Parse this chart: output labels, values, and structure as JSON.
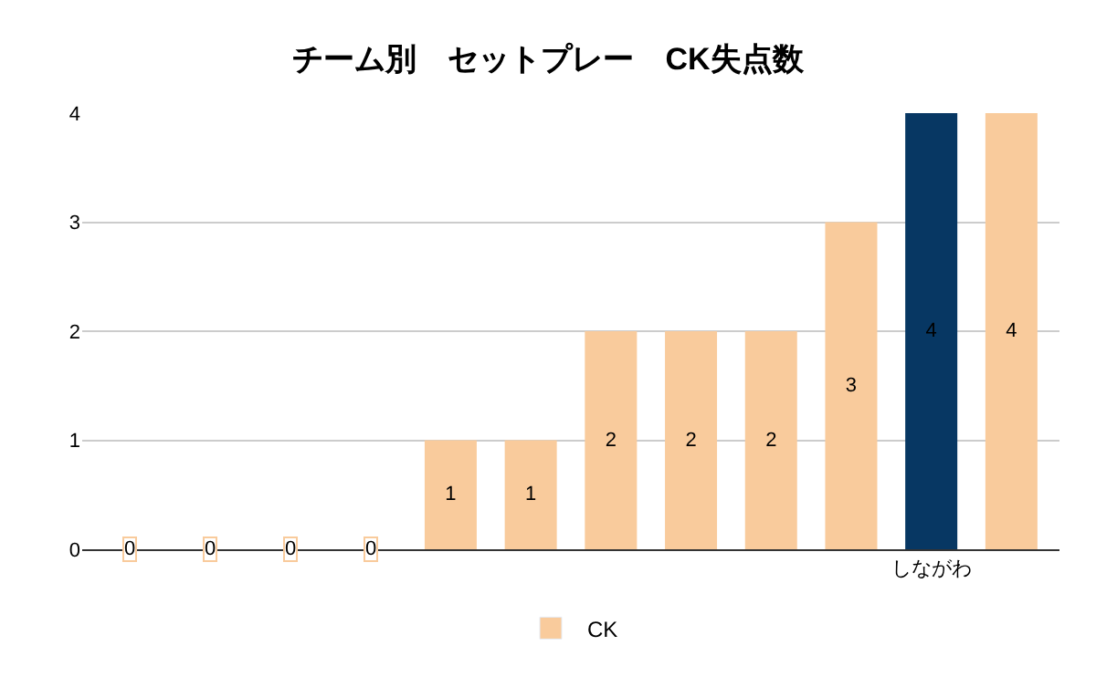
{
  "chart_data": {
    "type": "bar",
    "title": "チーム別　セットプレー　CK失点数",
    "categories": [
      null,
      null,
      null,
      null,
      null,
      null,
      null,
      null,
      null,
      null,
      "しながわ",
      null
    ],
    "series": [
      {
        "name": "CK",
        "color": "#f9cb9c",
        "colors": [
          "#f9cb9c",
          "#f9cb9c",
          "#f9cb9c",
          "#f9cb9c",
          "#f9cb9c",
          "#f9cb9c",
          "#f9cb9c",
          "#f9cb9c",
          "#f9cb9c",
          "#f9cb9c",
          "#073763",
          "#f9cb9c"
        ],
        "values": [
          0,
          0,
          0,
          0,
          1,
          1,
          2,
          2,
          2,
          3,
          4,
          4
        ]
      }
    ],
    "ylim": [
      0,
      4
    ],
    "yticks": [
      0,
      1,
      2,
      3,
      4
    ],
    "grid": "y",
    "legend": "bottom",
    "data_labels": true
  }
}
